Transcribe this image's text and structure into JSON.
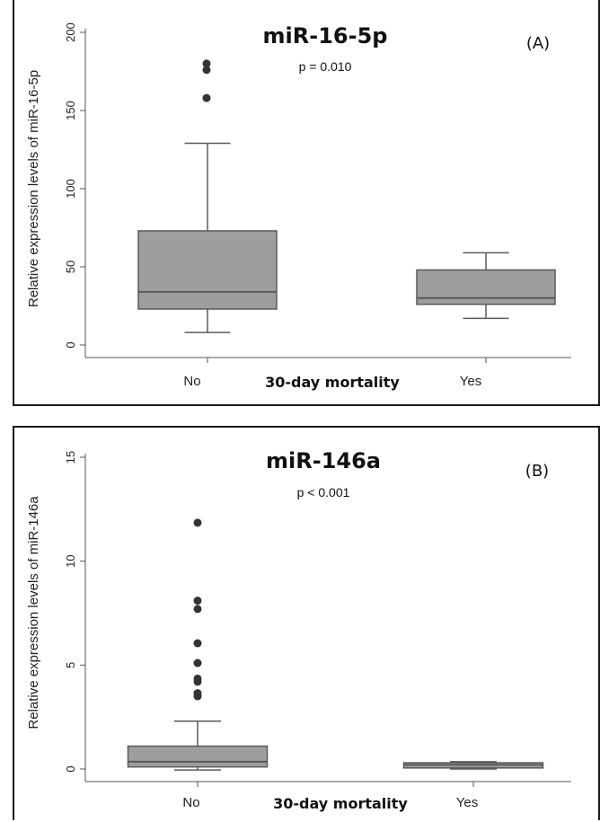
{
  "chart_data": [
    {
      "type": "box",
      "panel_label": "(A)",
      "title": "miR-16-5p",
      "pvalue": "p = 0.010",
      "xlabel": "30-day mortality",
      "ylabel": "Relative expression levels of miR-16-5p",
      "categories": [
        "No",
        "Yes"
      ],
      "ylim": [
        0,
        200
      ],
      "yticks": [
        0,
        50,
        100,
        150,
        200
      ],
      "boxes": [
        {
          "category": "No",
          "whisker_low": 8,
          "q1": 23,
          "median": 34,
          "q3": 73,
          "whisker_high": 129,
          "outliers": [
            158,
            176,
            180
          ]
        },
        {
          "category": "Yes",
          "whisker_low": 17,
          "q1": 26,
          "median": 30,
          "q3": 48,
          "whisker_high": 59,
          "outliers": []
        }
      ],
      "colors": {
        "box_fill": "#9e9e9e",
        "box_stroke": "#5a5a5a",
        "outlier": "#333333"
      }
    },
    {
      "type": "box",
      "panel_label": "(B)",
      "title": "miR-146a",
      "pvalue": "p < 0.001",
      "xlabel": "30-day mortality",
      "ylabel": "Relative expression levels of miR-146a",
      "categories": [
        "No",
        "Yes"
      ],
      "ylim": [
        0,
        15
      ],
      "yticks": [
        0,
        5,
        10,
        15
      ],
      "boxes": [
        {
          "category": "No",
          "whisker_low": -0.05,
          "q1": 0.1,
          "median": 0.35,
          "q3": 1.1,
          "whisker_high": 2.3,
          "outliers": [
            3.5,
            3.65,
            4.2,
            4.35,
            5.1,
            6.05,
            7.7,
            8.1,
            11.85
          ]
        },
        {
          "category": "Yes",
          "whisker_low": 0.0,
          "q1": 0.05,
          "median": 0.2,
          "q3": 0.3,
          "whisker_high": 0.35,
          "outliers": []
        }
      ],
      "colors": {
        "box_fill": "#9e9e9e",
        "box_stroke": "#5a5a5a",
        "outlier": "#333333"
      }
    }
  ]
}
